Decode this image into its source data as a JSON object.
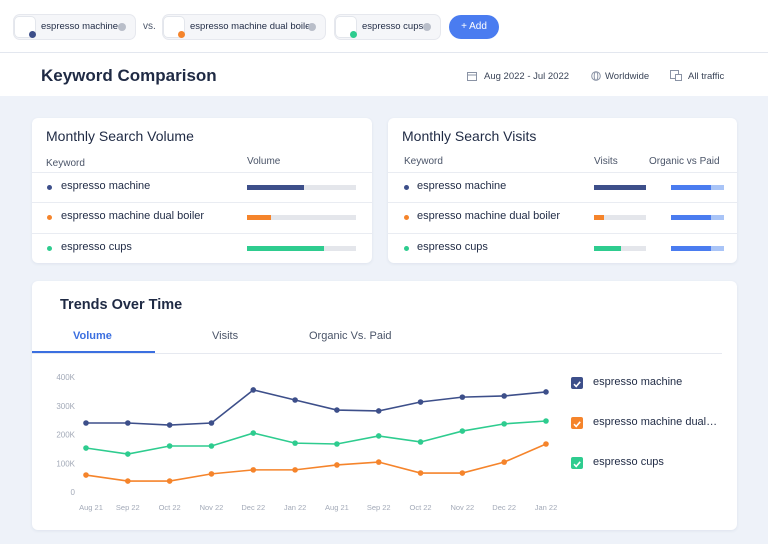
{
  "toolbar": {
    "keywords": [
      {
        "label": "espresso machine",
        "color": "#3d4f8a"
      },
      {
        "label": "espresso machine dual boiler",
        "color": "#f5842b"
      },
      {
        "label": "espresso cups",
        "color": "#2ecc8f"
      }
    ],
    "vs": "vs.",
    "add_button": "+ Add"
  },
  "header": {
    "title": "Keyword Comparison",
    "date_range": "Aug 2022 - Jul 2022",
    "location": "Worldwide",
    "traffic": "All traffic"
  },
  "volume_table": {
    "title": "Monthly Search Volume",
    "columns": [
      "Keyword",
      "Volume"
    ],
    "xlim": [
      0,
      100
    ],
    "rows": [
      {
        "keyword": "espresso machine",
        "volume": 52
      },
      {
        "keyword": "espresso machine dual boiler",
        "volume": 22
      },
      {
        "keyword": "espresso cups",
        "volume": 71
      }
    ]
  },
  "visits_table": {
    "title": "Monthly Search Visits",
    "columns": [
      "Keyword",
      "Visits",
      "Organic vs Paid"
    ],
    "xlim": [
      0,
      100
    ],
    "organic_color": "#4a7cf0",
    "paid_color": "#a9c4f7",
    "rows": [
      {
        "keyword": "espresso machine",
        "visits": 100,
        "organic": 75
      },
      {
        "keyword": "espresso machine dual boiler",
        "visits": 20,
        "organic": 75
      },
      {
        "keyword": "espresso cups",
        "visits": 52,
        "organic": 75
      }
    ]
  },
  "trends": {
    "title": "Trends Over Time",
    "tabs": [
      "Volume",
      "Visits",
      "Organic Vs. Paid"
    ],
    "active_tab": 0,
    "chart_data": {
      "type": "line",
      "categories": [
        "Aug 21",
        "Sep 22",
        "Oct 22",
        "Nov 22",
        "Dec 22",
        "Jan 22",
        "Aug 21",
        "Sep 22",
        "Oct 22",
        "Nov 22",
        "Dec 22",
        "Jan 22"
      ],
      "ylim": [
        0,
        400000
      ],
      "yticks": [
        0,
        {
          "value": 100000,
          "label": "100K"
        },
        {
          "value": 200000,
          "label": "200K"
        },
        {
          "value": 300000,
          "label": "300K"
        },
        {
          "value": 400000,
          "label": "400K"
        }
      ],
      "grid": false,
      "series": [
        {
          "name": "espresso machine",
          "color": "#3d4f8a",
          "values": [
            240000,
            240000,
            233000,
            240000,
            355000,
            320000,
            285000,
            282000,
            313000,
            330000,
            334000,
            348000
          ]
        },
        {
          "name": "espresso machine dual boiler",
          "color": "#f5842b",
          "values": [
            59000,
            38000,
            38000,
            63000,
            77000,
            77000,
            94000,
            104000,
            66000,
            66000,
            104000,
            167000
          ]
        },
        {
          "name": "espresso cups",
          "color": "#2ecc8f",
          "values": [
            153000,
            132000,
            160000,
            160000,
            205000,
            170000,
            167000,
            195000,
            174000,
            212000,
            237000,
            247000
          ]
        }
      ]
    }
  }
}
